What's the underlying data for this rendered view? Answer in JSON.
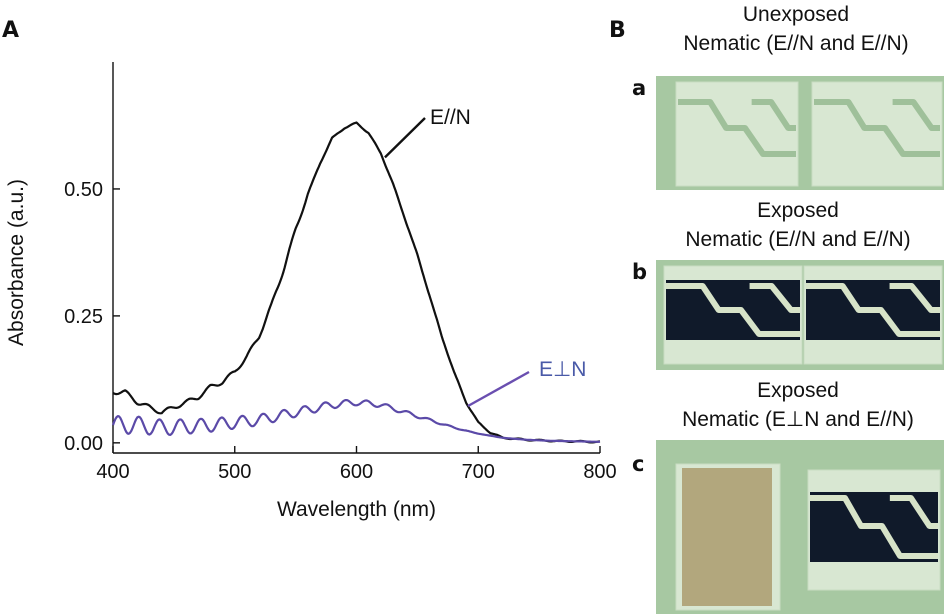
{
  "panel_a": {
    "letter": "A",
    "chart_data": {
      "type": "line",
      "title": "",
      "xlabel": "Wavelength (nm)",
      "ylabel": "Absorbance (a.u.)",
      "xlim": [
        400,
        800
      ],
      "ylim": [
        -0.02,
        0.75
      ],
      "xticks": [
        400,
        500,
        600,
        700,
        800
      ],
      "yticks": [
        0.0,
        0.25,
        0.5
      ],
      "ytick_labels": [
        "0.00",
        "0.25",
        "0.50"
      ],
      "grid": false,
      "series": [
        {
          "name": "E//N",
          "color": "#111111",
          "x": [
            400,
            410,
            420,
            430,
            440,
            450,
            460,
            470,
            480,
            490,
            500,
            510,
            520,
            530,
            540,
            550,
            560,
            570,
            580,
            590,
            600,
            610,
            620,
            630,
            640,
            650,
            660,
            670,
            680,
            690,
            700,
            710,
            720,
            730,
            740,
            750,
            760,
            770,
            780,
            790,
            800
          ],
          "y": [
            0.1,
            0.1,
            0.08,
            0.07,
            0.06,
            0.07,
            0.08,
            0.09,
            0.11,
            0.12,
            0.14,
            0.17,
            0.21,
            0.27,
            0.34,
            0.42,
            0.49,
            0.55,
            0.6,
            0.62,
            0.63,
            0.61,
            0.57,
            0.51,
            0.44,
            0.37,
            0.29,
            0.21,
            0.14,
            0.08,
            0.04,
            0.02,
            0.01,
            0.008,
            0.006,
            0.005,
            0.004,
            0.003,
            0.003,
            0.002,
            0.002
          ]
        },
        {
          "name": "E⊥N",
          "color": "#5b4aa8",
          "x": [
            400,
            420,
            440,
            460,
            480,
            500,
            520,
            540,
            560,
            580,
            600,
            620,
            640,
            660,
            680,
            700,
            720,
            740,
            760,
            780,
            800
          ],
          "y": [
            0.035,
            0.035,
            0.03,
            0.032,
            0.035,
            0.04,
            0.045,
            0.055,
            0.065,
            0.075,
            0.08,
            0.075,
            0.06,
            0.045,
            0.03,
            0.018,
            0.01,
            0.006,
            0.004,
            0.003,
            0.002
          ],
          "oscillation_amplitude_start": 0.018,
          "oscillation_period_nm": 17
        }
      ],
      "annotations": [
        {
          "text": "E//N",
          "color": "#111111",
          "at_x": 625,
          "at_y": 0.57
        },
        {
          "text": "E⊥N",
          "color": "#4a5aa8",
          "at_x": 690,
          "at_y": 0.035
        }
      ]
    }
  },
  "panel_b": {
    "letter": "B",
    "rows": [
      {
        "letter": "a",
        "caption_line1": "Unexposed",
        "caption_line2": "Nematic (E//N and E//N)",
        "left_state": "clear",
        "right_state": "clear"
      },
      {
        "letter": "b",
        "caption_line1": "Exposed",
        "caption_line2": "Nematic (E//N and E//N)",
        "left_state": "dark",
        "right_state": "dark"
      },
      {
        "letter": "c",
        "caption_line1": "Exposed",
        "caption_line2": "Nematic (E⊥N and E//N)",
        "left_state": "tinted",
        "right_state": "dark"
      }
    ],
    "colors": {
      "background": "#a7c8a2",
      "glass": "#d8e7d2",
      "electrode": "#9fc09a",
      "dark_fill": "#101a2a",
      "tinted_fill": "#b2a77d"
    }
  }
}
